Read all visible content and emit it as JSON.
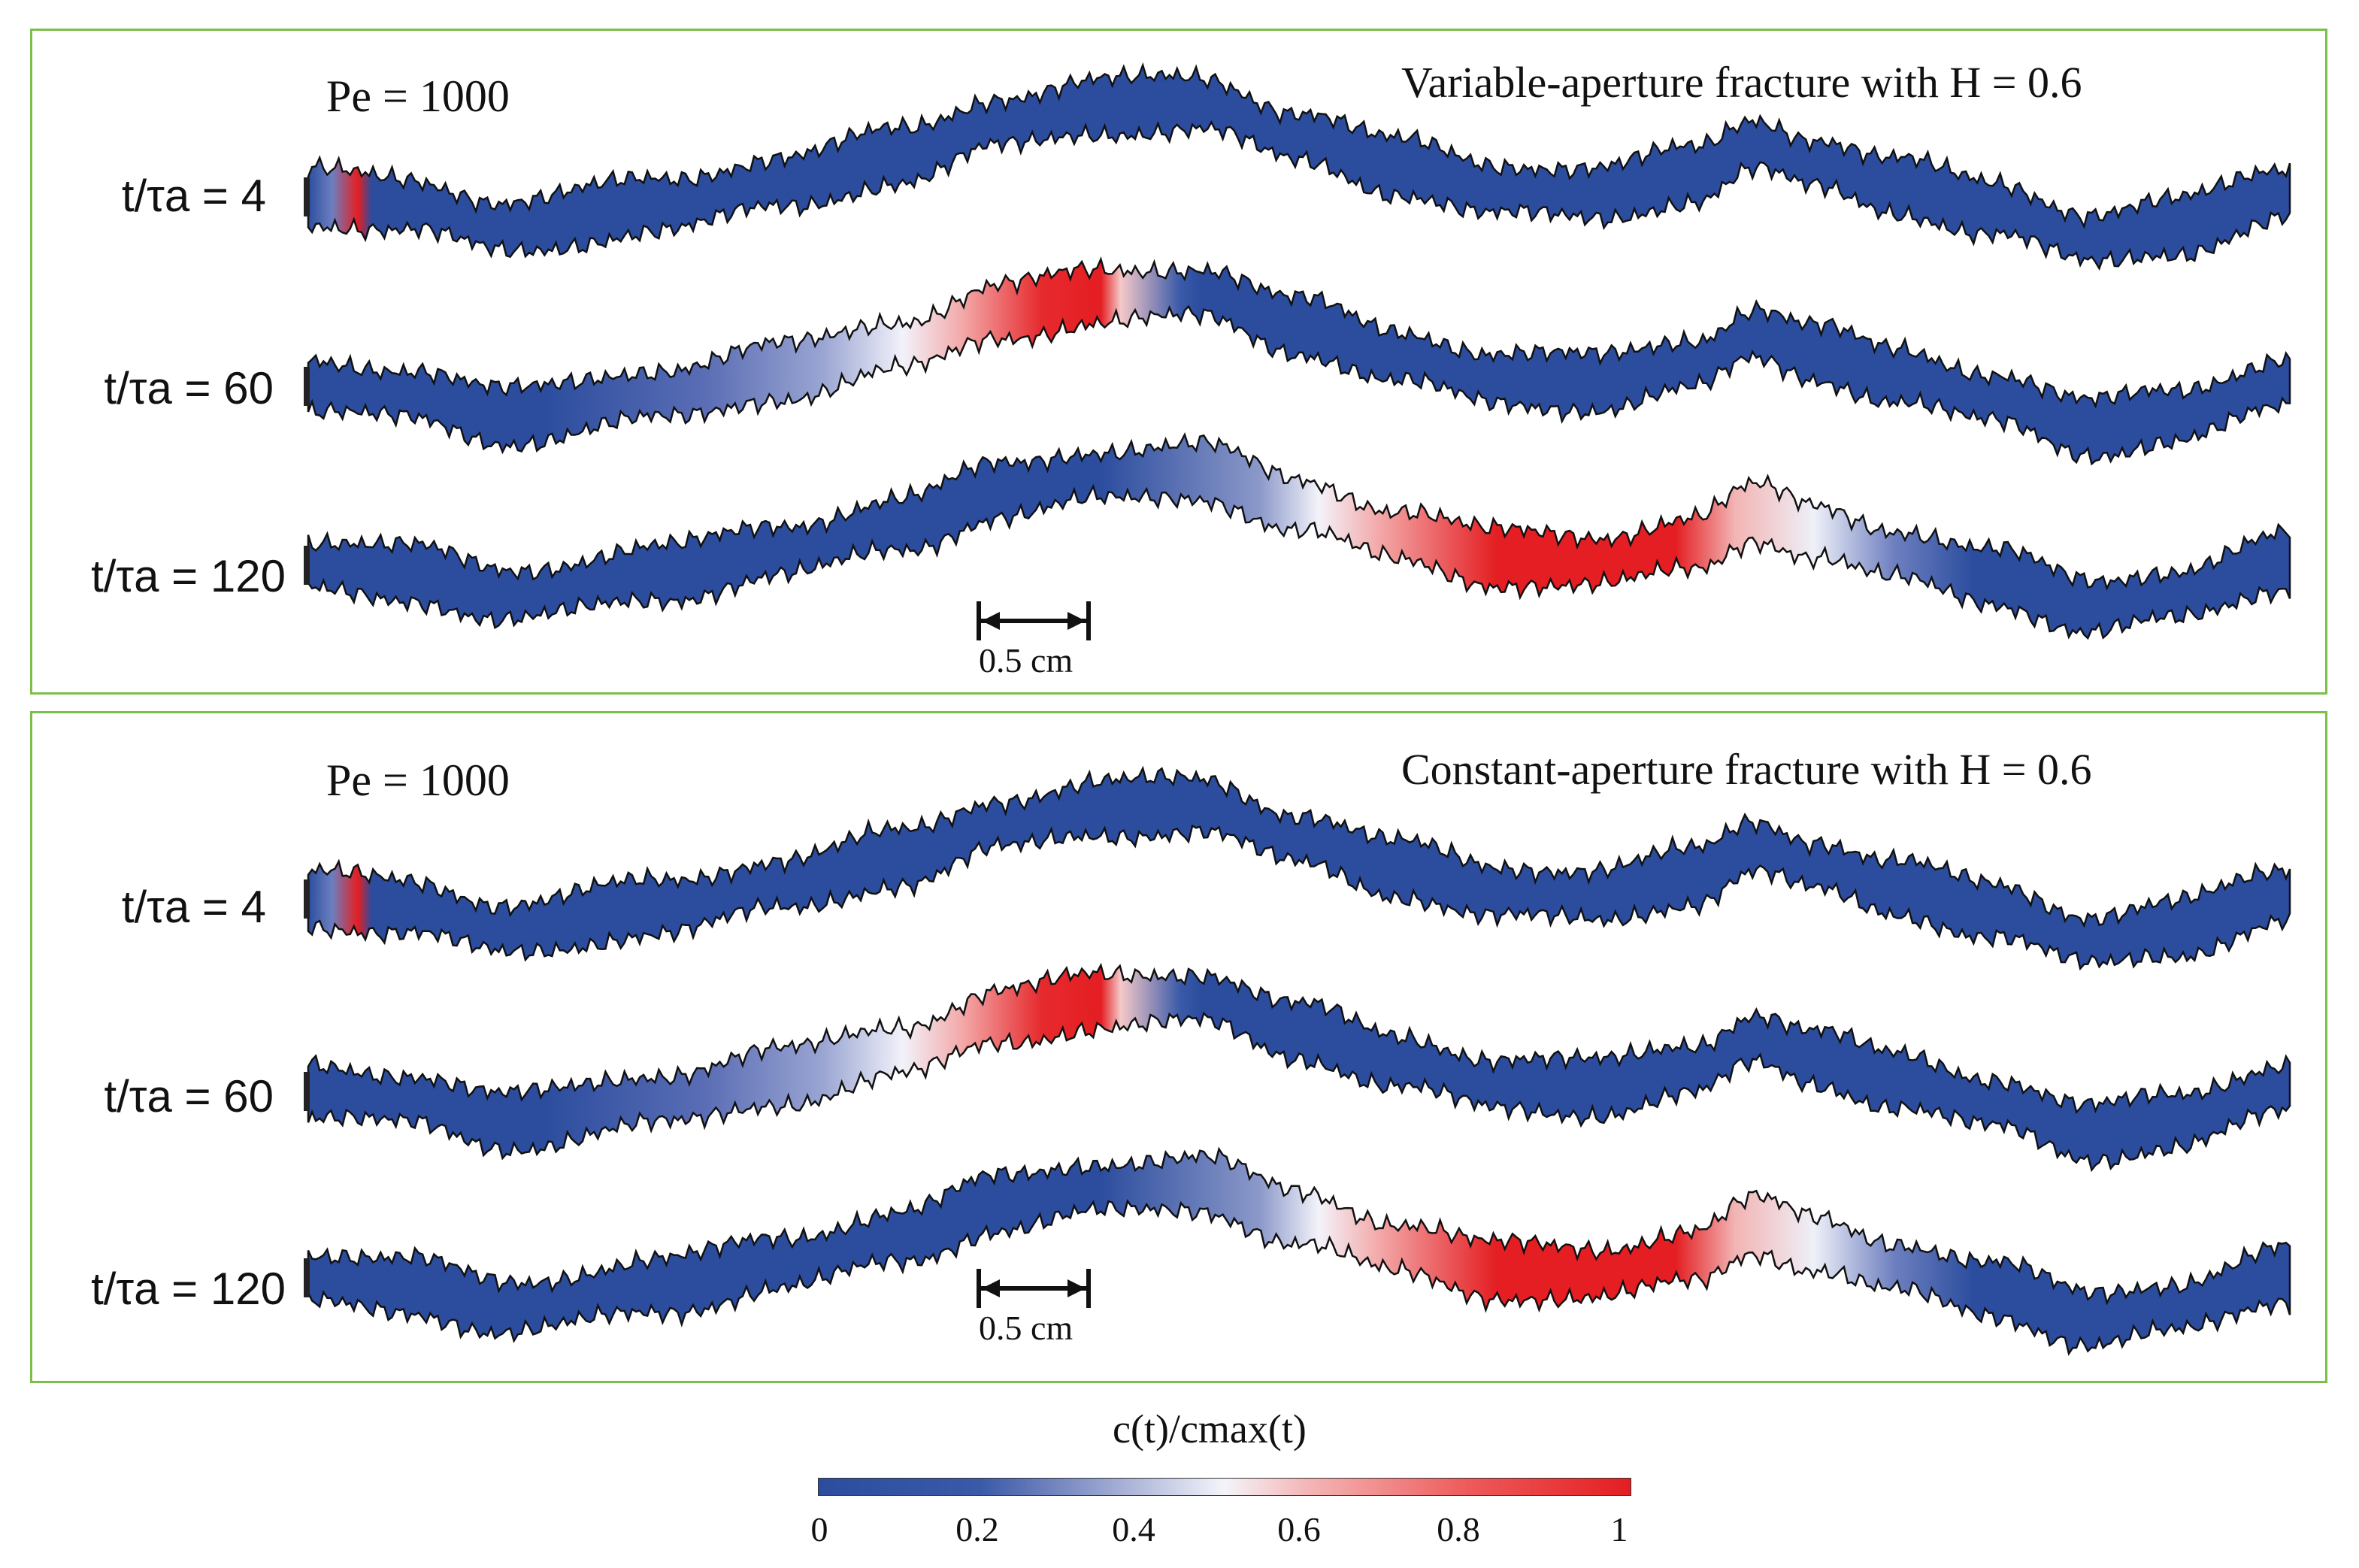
{
  "panels": [
    {
      "pe_label": "Pe = 1000",
      "title": "Variable-aperture fracture with H = 0.6",
      "rows": [
        {
          "label": "t/τa = 4"
        },
        {
          "label": "t/τa = 60"
        },
        {
          "label": "t/τa = 120"
        }
      ],
      "scale_label": "0.5 cm"
    },
    {
      "pe_label": "Pe = 1000",
      "title": "Constant-aperture fracture with H = 0.6",
      "rows": [
        {
          "label": "t/τa = 4"
        },
        {
          "label": "t/τa = 60"
        },
        {
          "label": "t/τa = 120"
        }
      ],
      "scale_label": "0.5 cm"
    }
  ],
  "colorbar": {
    "title": "c(t)/cmax(t)",
    "ticks": [
      "0",
      "0.2",
      "0.4",
      "0.6",
      "0.8",
      "1"
    ]
  },
  "colors": {
    "fracture_blue": "#2c4d9e",
    "plume_red": "#e41e22",
    "frame_green": "#7bbf4a"
  }
}
